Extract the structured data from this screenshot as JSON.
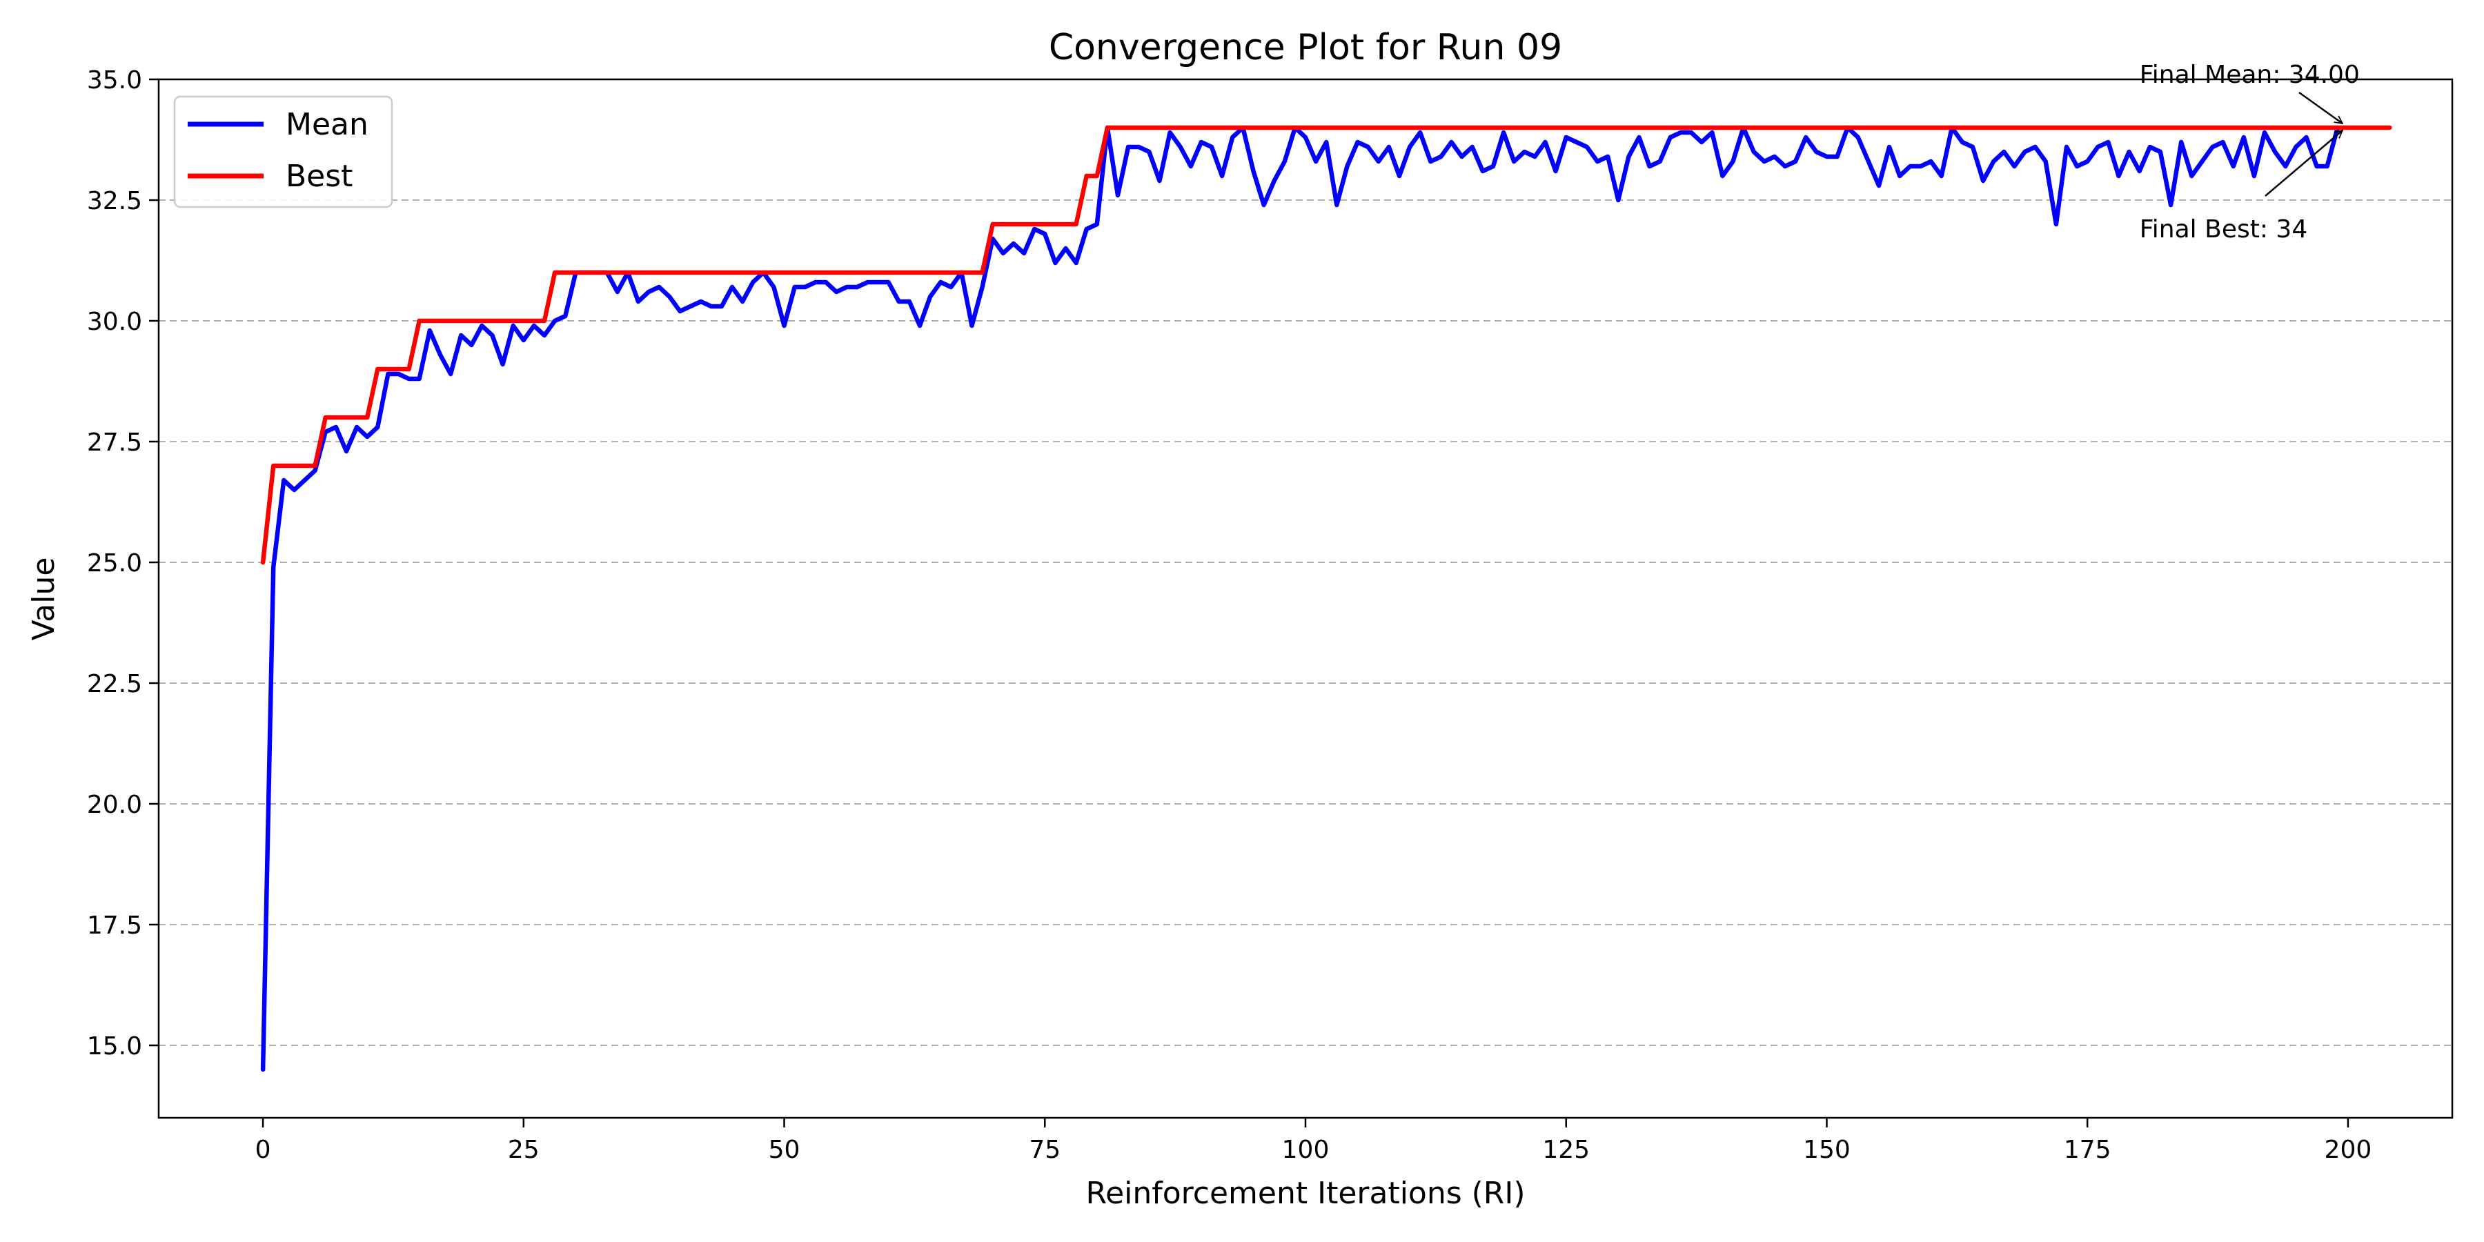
{
  "chart_data": {
    "type": "line",
    "title": "Convergence Plot for Run 09",
    "xlabel": "Reinforcement Iterations (RI)",
    "ylabel": "Value",
    "xlim": [
      -10,
      210
    ],
    "ylim": [
      13.5,
      35.0
    ],
    "xticks": [
      0,
      25,
      50,
      75,
      100,
      125,
      150,
      175,
      200
    ],
    "xtick_labels": [
      "0",
      "25",
      "50",
      "75",
      "100",
      "125",
      "150",
      "175",
      "200"
    ],
    "yticks": [
      15.0,
      17.5,
      20.0,
      22.5,
      25.0,
      27.5,
      30.0,
      32.5,
      35.0
    ],
    "ytick_labels": [
      "15.0",
      "17.5",
      "20.0",
      "22.5",
      "25.0",
      "27.5",
      "30.0",
      "32.5",
      "35.0"
    ],
    "grid": "y-dashed",
    "legend_position": "top-left",
    "series": [
      {
        "name": "Mean",
        "color": "#0000ff",
        "values": [
          14.5,
          24.9,
          26.7,
          26.5,
          26.7,
          26.9,
          27.7,
          27.8,
          27.3,
          27.8,
          27.6,
          27.8,
          28.9,
          28.9,
          28.8,
          28.8,
          29.8,
          29.3,
          28.9,
          29.7,
          29.5,
          29.9,
          29.7,
          29.1,
          29.9,
          29.6,
          29.9,
          29.7,
          30.0,
          30.1,
          31.0,
          31.0,
          31.0,
          31.0,
          30.6,
          31.0,
          30.4,
          30.6,
          30.7,
          30.5,
          30.2,
          30.3,
          30.4,
          30.3,
          30.3,
          30.7,
          30.4,
          30.8,
          31.0,
          30.7,
          29.9,
          30.7,
          30.7,
          30.8,
          30.8,
          30.6,
          30.7,
          30.7,
          30.8,
          30.8,
          30.8,
          30.4,
          30.4,
          29.9,
          30.5,
          30.8,
          30.7,
          31.0,
          29.9,
          30.7,
          31.7,
          31.4,
          31.6,
          31.4,
          31.9,
          31.8,
          31.2,
          31.5,
          31.2,
          31.9,
          32.0,
          34.0,
          32.6,
          33.6,
          33.6,
          33.5,
          32.9,
          33.9,
          33.6,
          33.2,
          33.7,
          33.6,
          33.0,
          33.8,
          34.0,
          33.1,
          32.4,
          32.9,
          33.3,
          34.0,
          33.8,
          33.3,
          33.7,
          32.4,
          33.2,
          33.7,
          33.6,
          33.3,
          33.6,
          33.0,
          33.6,
          33.9,
          33.3,
          33.4,
          33.7,
          33.4,
          33.6,
          33.1,
          33.2,
          33.9,
          33.3,
          33.5,
          33.4,
          33.7,
          33.1,
          33.8,
          33.7,
          33.6,
          33.3,
          33.4,
          32.5,
          33.4,
          33.8,
          33.2,
          33.3,
          33.8,
          33.9,
          33.9,
          33.7,
          33.9,
          33.0,
          33.3,
          34.0,
          33.5,
          33.3,
          33.4,
          33.2,
          33.3,
          33.8,
          33.5,
          33.4,
          33.4,
          34.0,
          33.8,
          33.3,
          32.8,
          33.6,
          33.0,
          33.2,
          33.2,
          33.3,
          33.0,
          34.0,
          33.7,
          33.6,
          32.9,
          33.3,
          33.5,
          33.2,
          33.5,
          33.6,
          33.3,
          32.0,
          33.6,
          33.2,
          33.3,
          33.6,
          33.7,
          33.0,
          33.5,
          33.1,
          33.6,
          33.5,
          32.4,
          33.7,
          33.0,
          33.3,
          33.6,
          33.7,
          33.2,
          33.8,
          33.0,
          33.9,
          33.5,
          33.2,
          33.6,
          33.8,
          33.2,
          33.2,
          34.0
        ]
      },
      {
        "name": "Best",
        "color": "#ff0000",
        "values": [
          25,
          27,
          27,
          27,
          27,
          27,
          28,
          28,
          28,
          28,
          28,
          29,
          29,
          29,
          29,
          30,
          30,
          30,
          30,
          30,
          30,
          30,
          30,
          30,
          30,
          30,
          30,
          30,
          31,
          31,
          31,
          31,
          31,
          31,
          31,
          31,
          31,
          31,
          31,
          31,
          31,
          31,
          31,
          31,
          31,
          31,
          31,
          31,
          31,
          31,
          31,
          31,
          31,
          31,
          31,
          31,
          31,
          31,
          31,
          31,
          31,
          31,
          31,
          31,
          31,
          31,
          31,
          31,
          31,
          31,
          32,
          32,
          32,
          32,
          32,
          32,
          32,
          32,
          32,
          33,
          33,
          34,
          34,
          34,
          34,
          34,
          34,
          34,
          34,
          34,
          34,
          34,
          34,
          34,
          34,
          34,
          34,
          34,
          34,
          34,
          34,
          34,
          34,
          34,
          34,
          34,
          34,
          34,
          34,
          34,
          34,
          34,
          34,
          34,
          34,
          34,
          34,
          34,
          34,
          34,
          34,
          34,
          34,
          34,
          34,
          34,
          34,
          34,
          34,
          34,
          34,
          34,
          34,
          34,
          34,
          34,
          34,
          34,
          34,
          34,
          34,
          34,
          34,
          34,
          34,
          34,
          34,
          34,
          34,
          34,
          34,
          34,
          34,
          34,
          34,
          34,
          34,
          34,
          34,
          34,
          34,
          34,
          34,
          34,
          34,
          34,
          34,
          34,
          34,
          34,
          34,
          34,
          34,
          34,
          34,
          34,
          34,
          34,
          34,
          34,
          34,
          34,
          34,
          34,
          34,
          34,
          34,
          34,
          34,
          34,
          34,
          34,
          34,
          34,
          34,
          34,
          34,
          34,
          34,
          34,
          34,
          34,
          34,
          34,
          34
        ]
      }
    ],
    "annotations": [
      {
        "name": "final-mean",
        "text": "Final Mean: 34.00",
        "x": 200,
        "y": 34.0,
        "text_x": 180,
        "text_y": 35.1
      },
      {
        "name": "final-best",
        "text": "Final Best: 34",
        "x": 200,
        "y": 34.0,
        "text_x": 180,
        "text_y": 31.9
      }
    ]
  }
}
